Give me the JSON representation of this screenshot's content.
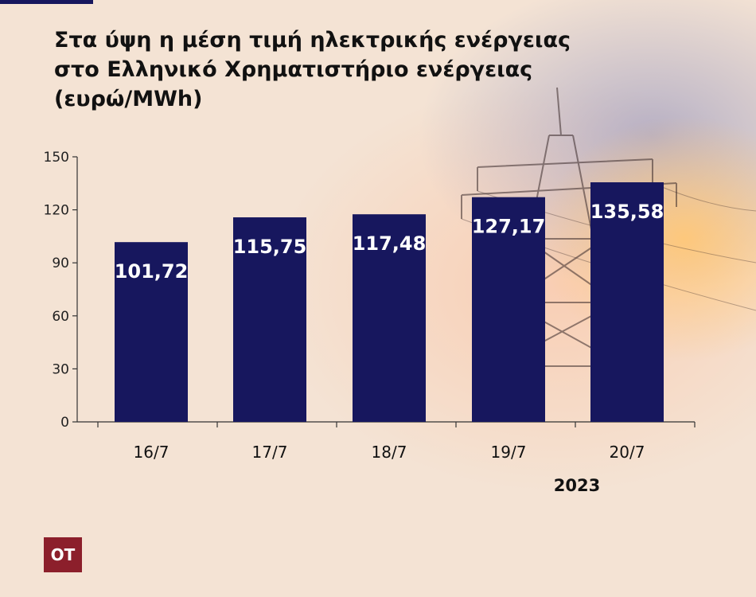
{
  "title_lines": [
    "Στα ύψη η μέση τιμή ηλεκτρικής ενέργειας",
    "στο Ελληνικό Χρηματιστήριο ενέργειας",
    "(ευρώ/MWh)"
  ],
  "year_label": "2023",
  "logo_text": "OT",
  "colors": {
    "bar": "#17175e",
    "bar_label": "#ffffff",
    "accent_rule": "#17175e",
    "logo_bg": "#8c1f2b"
  },
  "chart_data": {
    "type": "bar",
    "title": "Στα ύψη η μέση τιμή ηλεκτρικής ενέργειας στο Ελληνικό Χρηματιστήριο ενέργειας (ευρώ/MWh)",
    "categories": [
      "16/7",
      "17/7",
      "18/7",
      "19/7",
      "20/7"
    ],
    "values": [
      101.72,
      115.75,
      117.48,
      127.17,
      135.58
    ],
    "value_labels": [
      "101,72",
      "115,75",
      "117,48",
      "127,17",
      "135,58"
    ],
    "yticks": [
      "0",
      "30",
      "60",
      "90",
      "120",
      "150"
    ],
    "ytick_values": [
      0,
      30,
      60,
      90,
      120,
      150
    ],
    "ylim": [
      0,
      150
    ],
    "xlabel": "",
    "ylabel": "",
    "grid": false
  }
}
